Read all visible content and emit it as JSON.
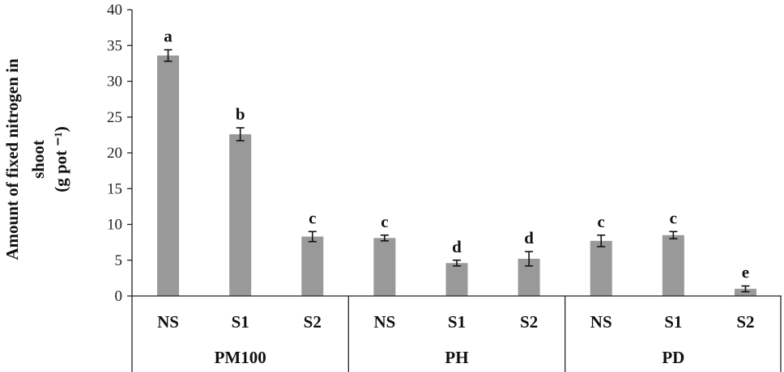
{
  "chart_data": {
    "type": "bar",
    "ylabel_lines": [
      "Amount  of fixed nitrogen in",
      "shoot",
      "(g pot ⁻¹)"
    ],
    "ylim": [
      0,
      40
    ],
    "yticks": [
      0,
      5,
      10,
      15,
      20,
      25,
      30,
      35,
      40
    ],
    "grid": false,
    "bar_color": "#999999",
    "groups": [
      {
        "name": "PM100",
        "categories": [
          "NS",
          "S1",
          "S2"
        ],
        "values": [
          33.6,
          22.6,
          8.3
        ],
        "errors": [
          0.8,
          0.9,
          0.7
        ],
        "letters": [
          "a",
          "b",
          "c"
        ]
      },
      {
        "name": "PH",
        "categories": [
          "NS",
          "S1",
          "S2"
        ],
        "values": [
          8.1,
          4.6,
          5.2
        ],
        "errors": [
          0.4,
          0.4,
          1.0
        ],
        "letters": [
          "c",
          "d",
          "d"
        ]
      },
      {
        "name": "PD",
        "categories": [
          "NS",
          "S1",
          "S2"
        ],
        "values": [
          7.7,
          8.5,
          1.0
        ],
        "errors": [
          0.8,
          0.5,
          0.4
        ],
        "letters": [
          "c",
          "c",
          "e"
        ]
      }
    ]
  }
}
